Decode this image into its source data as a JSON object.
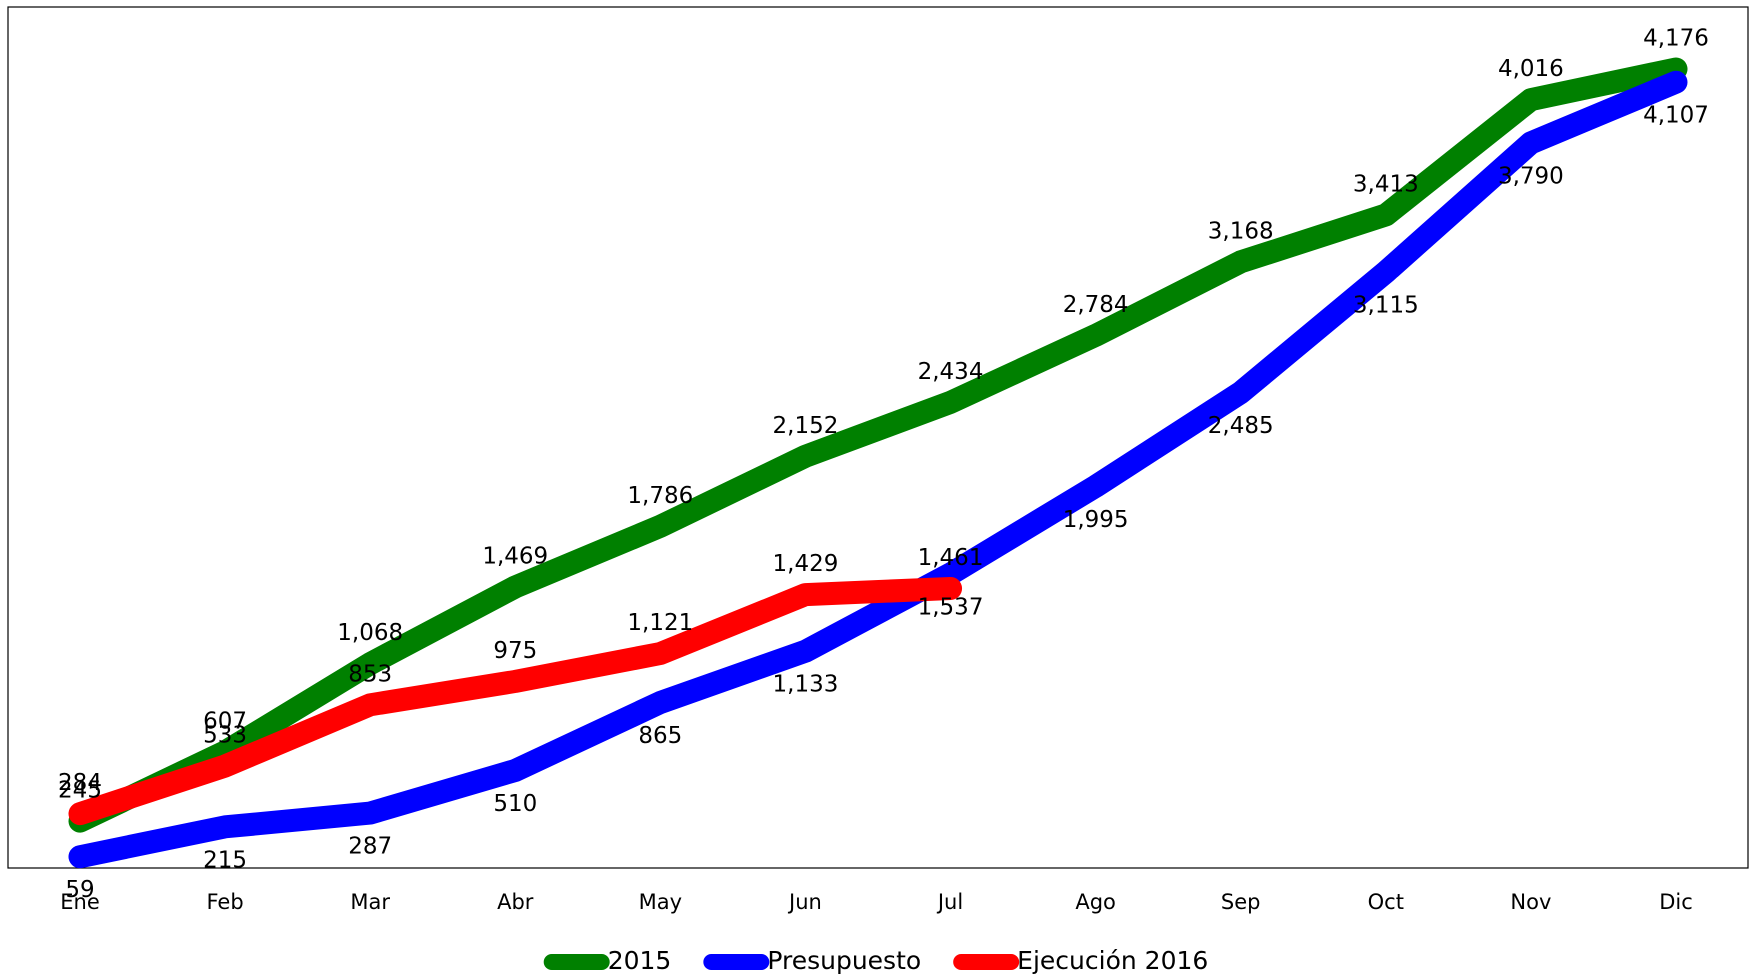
{
  "chart_data": {
    "type": "line",
    "categories": [
      "Ene",
      "Feb",
      "Mar",
      "Abr",
      "May",
      "Jun",
      "Jul",
      "Ago",
      "Sep",
      "Oct",
      "Nov",
      "Dic"
    ],
    "ylim": [
      0,
      4500
    ],
    "series": [
      {
        "name": "2015",
        "color": "#008000",
        "values": [
          245,
          607,
          1068,
          1469,
          1786,
          2152,
          2434,
          2784,
          3168,
          3413,
          4016,
          4176
        ],
        "value_labels": [
          "245",
          "607",
          "1,068",
          "1,469",
          "1,786",
          "2,152",
          "2,434",
          "2,784",
          "3,168",
          "3,413",
          "4,016",
          "4,176"
        ]
      },
      {
        "name": "Presupuesto",
        "color": "#0000ff",
        "values": [
          59,
          215,
          287,
          510,
          865,
          1133,
          1537,
          1995,
          2485,
          3115,
          3790,
          4107
        ],
        "value_labels": [
          "59",
          "215",
          "287",
          "510",
          "865",
          "1,133",
          "1,537",
          "1,995",
          "2,485",
          "3,115",
          "3,790",
          "4,107"
        ]
      },
      {
        "name": "Ejecución 2016",
        "color": "#ff0000",
        "values": [
          284,
          533,
          853,
          975,
          1121,
          1429,
          1461,
          null,
          null,
          null,
          null,
          null
        ],
        "value_labels": [
          "284",
          "533",
          "853",
          "975",
          "1,121",
          "1,429",
          "1,461",
          null,
          null,
          null,
          null,
          null
        ]
      }
    ]
  }
}
